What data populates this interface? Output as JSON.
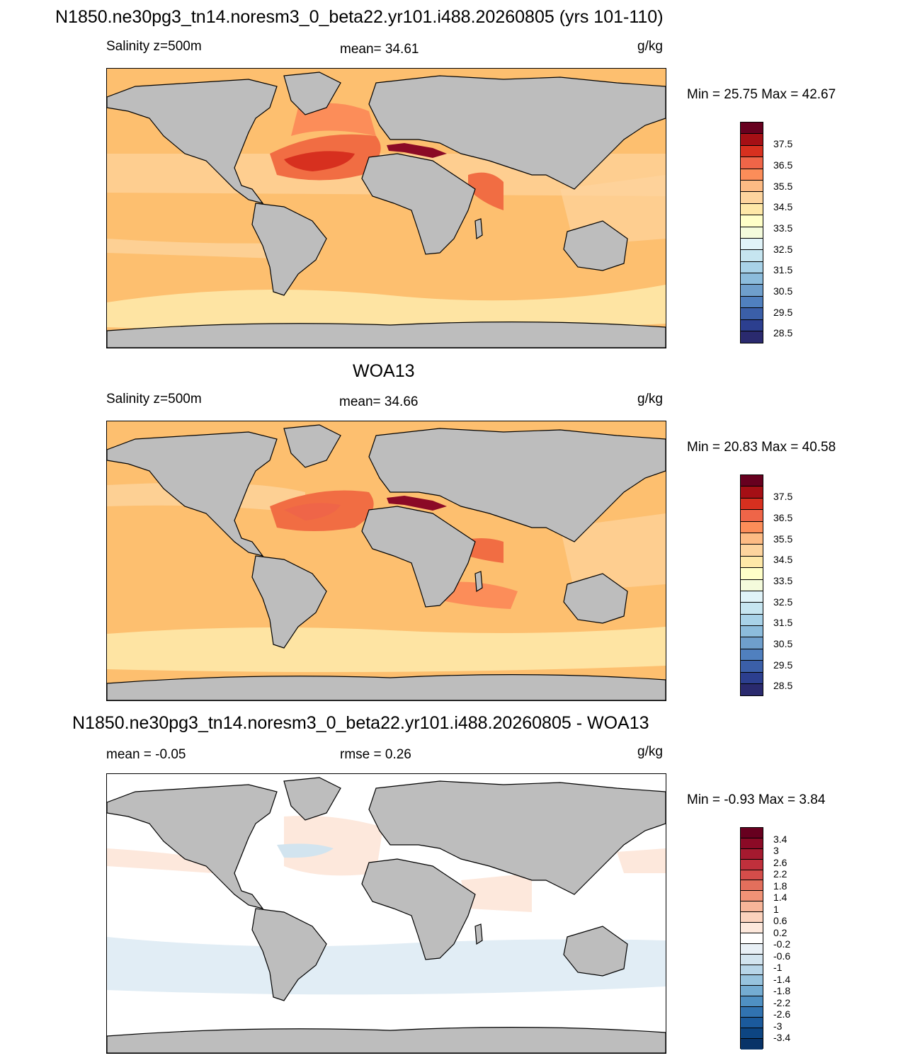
{
  "page_title": "N1850.ne30pg3_tn14.noresm3_0_beta22.yr101.i488.20260805 (yrs 101-110)",
  "panels": [
    {
      "title": "",
      "left_label": "Salinity z=500m",
      "center_label": "mean=  34.61",
      "units": "g/kg",
      "minmax": "Min =  25.75 Max =  42.67",
      "colorbar": {
        "labels": [
          "37.5",
          "36.5",
          "35.5",
          "34.5",
          "33.5",
          "32.5",
          "31.5",
          "30.5",
          "29.5",
          "28.5"
        ],
        "colors": [
          "#67001f",
          "#a50f15",
          "#d7301f",
          "#ef6548",
          "#fc8d59",
          "#fdbb84",
          "#fdd49e",
          "#fee8a8",
          "#ffffc8",
          "#f4fbdc",
          "#e0f3f8",
          "#c6e5f0",
          "#a8d2e8",
          "#8cbcdc",
          "#6f9fcc",
          "#5080bf",
          "#3b5fa8",
          "#2c3f8f",
          "#2a2a6e"
        ]
      }
    },
    {
      "title": "WOA13",
      "left_label": "Salinity z=500m",
      "center_label": "mean=  34.66",
      "units": "g/kg",
      "minmax": "Min =  20.83 Max =  40.58",
      "colorbar": {
        "labels": [
          "37.5",
          "36.5",
          "35.5",
          "34.5",
          "33.5",
          "32.5",
          "31.5",
          "30.5",
          "29.5",
          "28.5"
        ],
        "colors": [
          "#67001f",
          "#a50f15",
          "#d7301f",
          "#ef6548",
          "#fc8d59",
          "#fdbb84",
          "#fdd49e",
          "#fee8a8",
          "#ffffc8",
          "#f4fbdc",
          "#e0f3f8",
          "#c6e5f0",
          "#a8d2e8",
          "#8cbcdc",
          "#6f9fcc",
          "#5080bf",
          "#3b5fa8",
          "#2c3f8f",
          "#2a2a6e"
        ]
      }
    },
    {
      "title": "N1850.ne30pg3_tn14.noresm3_0_beta22.yr101.i488.20260805 - WOA13",
      "left_label": "mean =  -0.05",
      "center_label": "rmse =   0.26",
      "units": "g/kg",
      "minmax": "Min =  -0.93 Max =   3.84",
      "colorbar": {
        "labels": [
          "3.4",
          "3",
          "2.6",
          "2.2",
          "1.8",
          "1.4",
          "1",
          "0.6",
          "0.2",
          "-0.2",
          "-0.6",
          "-1",
          "-1.4",
          "-1.8",
          "-2.2",
          "-2.6",
          "-3",
          "-3.4"
        ],
        "colors": [
          "#67001f",
          "#8b0a26",
          "#a51a2f",
          "#c0303c",
          "#d44d4a",
          "#e36f5c",
          "#f09276",
          "#f7b599",
          "#fbd2bd",
          "#fde8dc",
          "#ffffff",
          "#e8f0f6",
          "#d2e4ef",
          "#b7d5e8",
          "#97c3de",
          "#74acd2",
          "#4f90c3",
          "#3173b1",
          "#1b5a9c",
          "#0d4582",
          "#083368"
        ]
      }
    }
  ],
  "colors": {
    "land": "#bdbdbd",
    "frame": "#000000",
    "ocean_base_model": "#fdbf6f",
    "ocean_base_obs": "#fdbf6f",
    "ocean_base_diff": "#ffffff"
  }
}
